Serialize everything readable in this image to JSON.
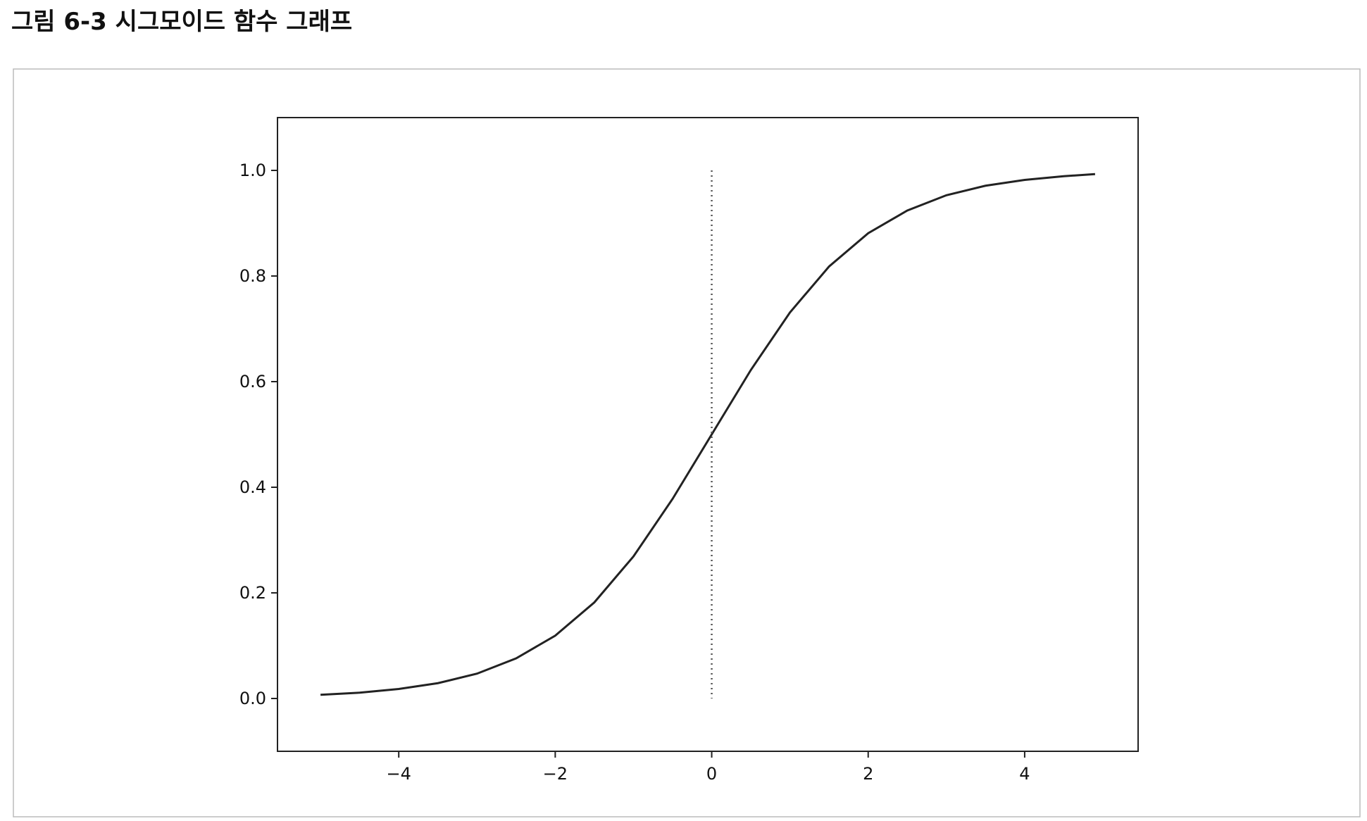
{
  "chart_data": {
    "type": "line",
    "title": "그림 6-3 시그모이드 함수 그래프",
    "series": [
      {
        "color": "#222222",
        "style": "solid",
        "x": [
          -5,
          -4.5,
          -4,
          -3.5,
          -3,
          -2.5,
          -2,
          -1.5,
          -1,
          -0.5,
          0,
          0.5,
          1,
          1.5,
          2,
          2.5,
          3,
          3.5,
          4,
          4.5,
          4.9
        ],
        "values": [
          0.007,
          0.011,
          0.018,
          0.029,
          0.047,
          0.076,
          0.119,
          0.182,
          0.269,
          0.378,
          0.5,
          0.622,
          0.731,
          0.818,
          0.881,
          0.924,
          0.953,
          0.971,
          0.982,
          0.989,
          0.993
        ]
      },
      {
        "color": "#555555",
        "style": "dotted",
        "x": [
          0,
          0
        ],
        "values": [
          1.0,
          0.0
        ]
      }
    ],
    "xlim": [
      -5.55,
      5.45
    ],
    "ylim": [
      -0.1,
      1.1
    ],
    "xticks": [
      {
        "value": -4,
        "label": "−4"
      },
      {
        "value": -2,
        "label": "−2"
      },
      0,
      2,
      4
    ],
    "yticks": [
      {
        "value": 0,
        "label": "0.0"
      },
      {
        "value": 0.2,
        "label": "0.2"
      },
      {
        "value": 0.4,
        "label": "0.4"
      },
      {
        "value": 0.6,
        "label": "0.6"
      },
      {
        "value": 0.8,
        "label": "0.8"
      },
      {
        "value": 1.0,
        "label": "1.0"
      }
    ],
    "grid": false
  }
}
